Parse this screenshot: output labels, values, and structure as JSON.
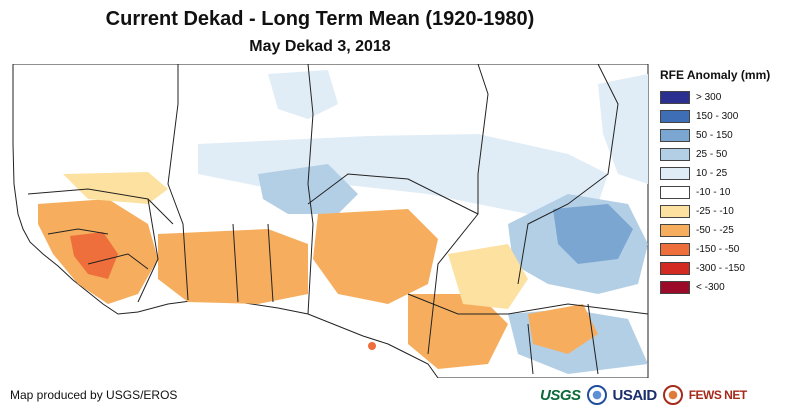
{
  "title": "Current Dekad - Long Term Mean (1920-1980)",
  "subtitle": "May Dekad 3, 2018",
  "legend": {
    "title": "RFE Anomaly (mm)",
    "classes": [
      {
        "label": "> 300",
        "color": "#2b2f8f"
      },
      {
        "label": "150 - 300",
        "color": "#3e6fb6"
      },
      {
        "label": "50 - 150",
        "color": "#7ba6d2"
      },
      {
        "label": "25 - 50",
        "color": "#b3cfe6"
      },
      {
        "label": "10 - 25",
        "color": "#e1edf6"
      },
      {
        "label": "-10 - 10",
        "color": "#ffffff"
      },
      {
        "label": "-25 - -10",
        "color": "#fde1a0"
      },
      {
        "label": "-50 - -25",
        "color": "#f6ae5e"
      },
      {
        "label": "-150 - -50",
        "color": "#ee6e3c"
      },
      {
        "label": "-300 - -150",
        "color": "#d32a22"
      },
      {
        "label": "< -300",
        "color": "#9c0a2a"
      }
    ]
  },
  "credit": "Map produced by USGS/EROS",
  "logos": {
    "usgs": "USGS",
    "usaid": "USAID",
    "fews": "FEWS NET"
  }
}
